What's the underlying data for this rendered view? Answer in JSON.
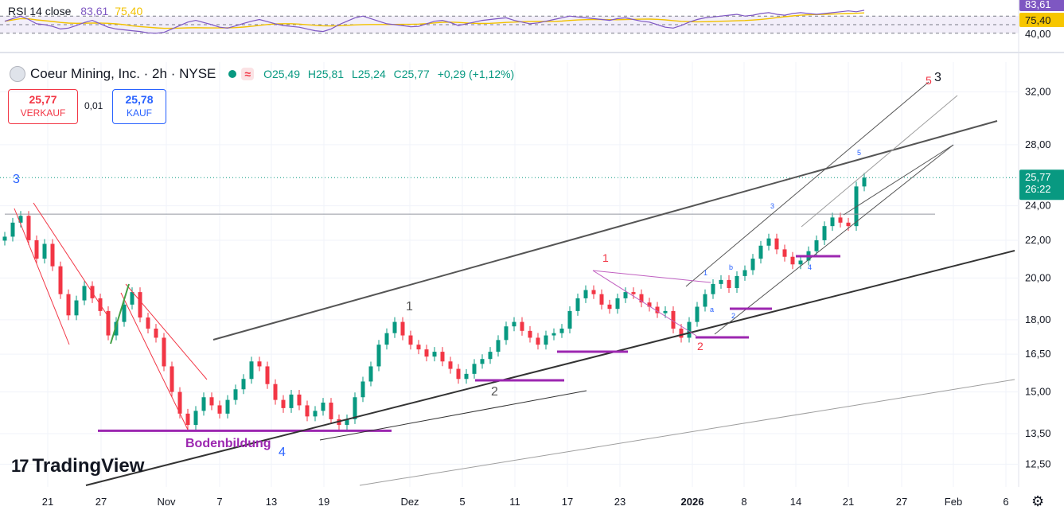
{
  "header": {
    "symbol_title": "Coeur Mining, Inc. · 2h · NYSE",
    "wave_badge": "≈",
    "open": "O25,49",
    "high": "H25,81",
    "low": "L25,24",
    "close": "C25,77",
    "change": "+0,29 (+1,12%)"
  },
  "trade": {
    "sell_value": "25,77",
    "sell_label": "VERKAUF",
    "spread": "0,01",
    "buy_value": "25,78",
    "buy_label": "KAUF"
  },
  "rsi": {
    "label": "RSI 14 close",
    "value": "83,61",
    "ma_value": "75,40",
    "axis_labels": [
      "83,61",
      "75,40",
      "40,00"
    ]
  },
  "price_axis": {
    "ticks": [
      "32,00",
      "28,00",
      "24,00",
      "22,00",
      "20,00",
      "18,00",
      "16,50",
      "15,00",
      "13,50",
      "12,50"
    ],
    "last_price": "25,77",
    "countdown": "26:22"
  },
  "time_axis": [
    "21",
    "27",
    "Nov",
    "7",
    "13",
    "19",
    "Dez",
    "5",
    "11",
    "17",
    "23",
    "2026",
    "8",
    "14",
    "21",
    "27",
    "Feb",
    "6"
  ],
  "annotations": {
    "bottom_label": "Bodenbildung",
    "wave_labels": [
      "3",
      "1",
      "2",
      "4",
      "1",
      "2",
      "3",
      "4",
      "5",
      "5",
      "3",
      "1",
      "2",
      "a",
      "b"
    ]
  },
  "brand": {
    "logo": "TradingView",
    "logo_mark": "17"
  },
  "colors": {
    "up": "#089981",
    "down": "#f23645",
    "rsi": "#7e57c2",
    "rsi_ma": "#f2c200",
    "bottom_line": "#9c27b0"
  },
  "chart_data": {
    "type": "candlestick",
    "title": "Coeur Mining, Inc. · 2h · NYSE",
    "y_scale": "log",
    "ylim": [
      11.8,
      34.5
    ],
    "x_categories": [
      "21",
      "27",
      "Nov",
      "7",
      "13",
      "19",
      "Dez",
      "5",
      "11",
      "17",
      "23",
      "2026",
      "8",
      "14",
      "21",
      "27",
      "Feb",
      "6"
    ],
    "close_series": [
      22.2,
      23.0,
      23.4,
      22.0,
      21.0,
      21.8,
      20.6,
      19.2,
      18.2,
      18.9,
      19.6,
      19.0,
      18.4,
      17.3,
      17.9,
      18.7,
      19.3,
      18.1,
      17.6,
      17.2,
      16.0,
      15.0,
      14.2,
      13.8,
      14.3,
      14.8,
      14.5,
      14.2,
      14.7,
      15.1,
      15.5,
      16.2,
      16.0,
      15.3,
      14.7,
      14.4,
      14.9,
      14.5,
      14.1,
      14.3,
      14.6,
      14.0,
      13.8,
      14.0,
      14.8,
      15.4,
      16.0,
      16.9,
      17.4,
      17.9,
      17.3,
      16.9,
      16.7,
      16.4,
      16.6,
      16.2,
      15.9,
      15.5,
      15.7,
      16.1,
      16.3,
      16.6,
      17.1,
      17.7,
      17.9,
      17.5,
      17.2,
      16.9,
      17.3,
      17.4,
      17.6,
      18.4,
      19.0,
      19.4,
      19.2,
      18.7,
      18.5,
      19.0,
      19.3,
      19.2,
      18.8,
      18.6,
      18.3,
      18.4,
      17.6,
      17.2,
      17.9,
      18.6,
      19.2,
      19.7,
      19.9,
      19.5,
      20.1,
      20.4,
      21.0,
      21.7,
      22.1,
      21.5,
      21.1,
      20.7,
      20.9,
      21.4,
      22.0,
      22.8,
      23.3,
      23.0,
      22.8,
      25.2,
      25.77
    ],
    "last": {
      "open": 25.49,
      "high": 25.81,
      "low": 25.24,
      "close": 25.77,
      "change": 0.29,
      "change_pct": 1.12
    },
    "horizontal_levels": [
      23.5,
      13.6
    ],
    "rsi_series": [
      58,
      64,
      70,
      62,
      52,
      50,
      46,
      40,
      42,
      48,
      55,
      60,
      52,
      44,
      40,
      38,
      36,
      34,
      31,
      30,
      32,
      40,
      48,
      56,
      60,
      55,
      50,
      44,
      42,
      47,
      53,
      58,
      62,
      57,
      52,
      48,
      46,
      44,
      40,
      36,
      34,
      40,
      50,
      58,
      66,
      70,
      64,
      58,
      52,
      50,
      48,
      45,
      46,
      52,
      58,
      60,
      55,
      48,
      52,
      56,
      60,
      62,
      64,
      66,
      60,
      56,
      52,
      54,
      58,
      62,
      66,
      70,
      68,
      66,
      64,
      62,
      60,
      64,
      66,
      62,
      58,
      56,
      50,
      44,
      42,
      48,
      56,
      62,
      66,
      68,
      70,
      72,
      74,
      70,
      72,
      76,
      78,
      74,
      72,
      76,
      78,
      76,
      74,
      76,
      78,
      80,
      82,
      80,
      83.61
    ],
    "rsi_ma_series_last": 75.4
  }
}
